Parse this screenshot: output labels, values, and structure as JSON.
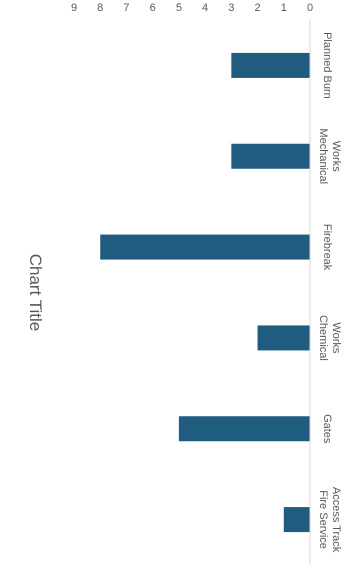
{
  "chart_data": {
    "type": "bar",
    "title": "Chart Title",
    "categories": [
      "Planned Burn",
      "Mechanical Works",
      "Firebreak",
      "Chemical Works",
      "Gates",
      "Fire Service Access Track"
    ],
    "category_lines": [
      [
        "Planned Burn"
      ],
      [
        "Mechanical",
        "Works"
      ],
      [
        "Firebreak"
      ],
      [
        "Chemical",
        "Works"
      ],
      [
        "Gates"
      ],
      [
        "Fire Service",
        "Access Track"
      ]
    ],
    "values": [
      3,
      3,
      8,
      2,
      5,
      1
    ],
    "ylim": [
      0,
      9
    ],
    "yticks": [
      "0",
      "1",
      "2",
      "3",
      "4",
      "5",
      "6",
      "7",
      "8",
      "9"
    ],
    "grid": false,
    "legend": "none",
    "colors": {
      "bar": "#1f5c7f",
      "axis": "#d9d9d9",
      "text": "#595959"
    }
  }
}
